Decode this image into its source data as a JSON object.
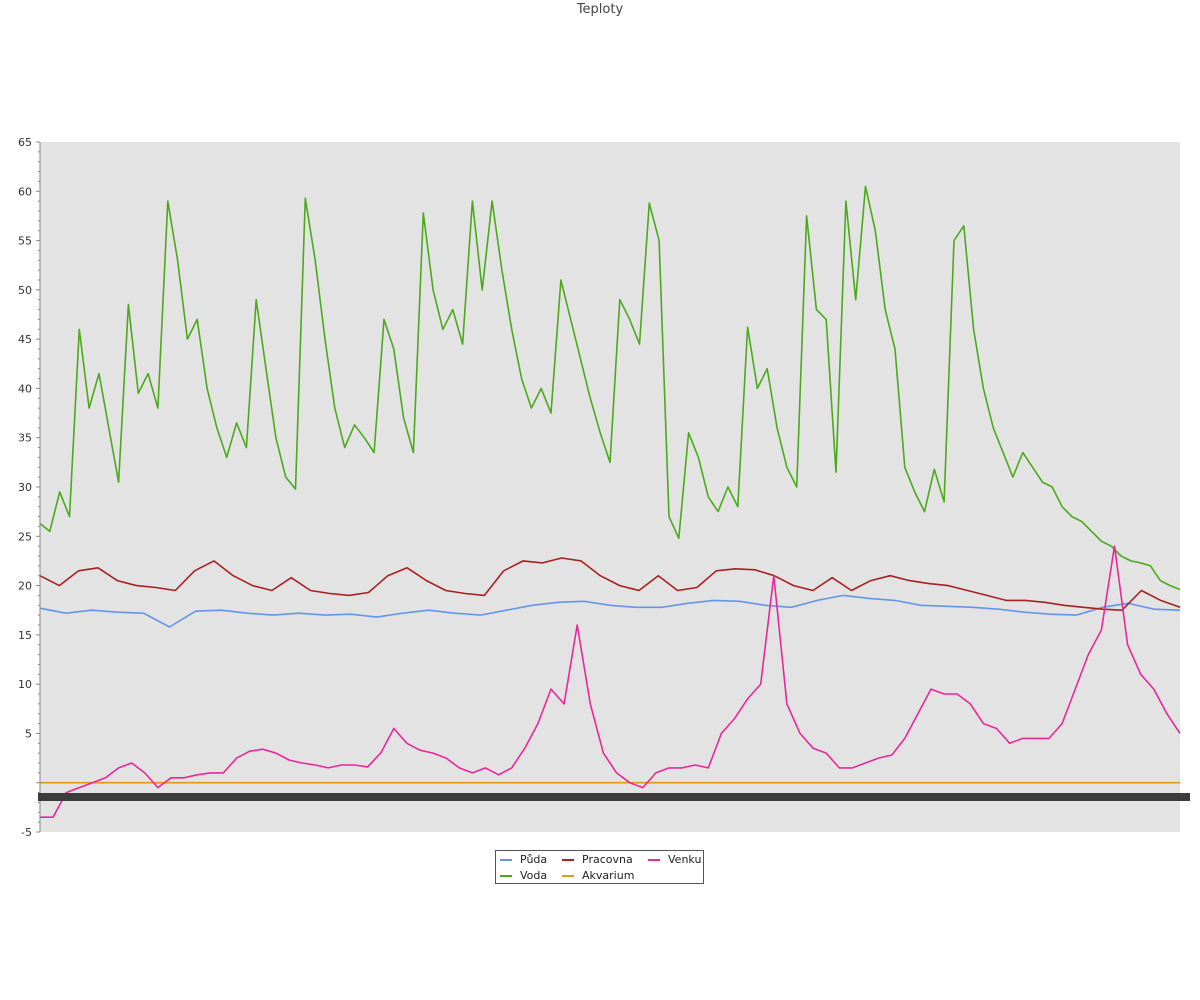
{
  "chart_data": {
    "type": "line",
    "title": "Teploty",
    "xlabel": "",
    "ylabel": "",
    "ylim": [
      -5,
      65
    ],
    "yticks": [
      65,
      60,
      55,
      50,
      45,
      40,
      35,
      30,
      25,
      20,
      15,
      10,
      5,
      -5
    ],
    "grid": false,
    "legend_position": "bottom-center",
    "plot_background": "#e3e3e3",
    "series": [
      {
        "name": "Půda",
        "color": "#6495ed",
        "values": [
          17.7,
          17.2,
          17.5,
          17.3,
          17.2,
          15.8,
          17.4,
          17.5,
          17.2,
          17.0,
          17.2,
          17.0,
          17.1,
          16.8,
          17.2,
          17.5,
          17.2,
          17.0,
          17.5,
          18.0,
          18.3,
          18.4,
          18.0,
          17.8,
          17.8,
          18.2,
          18.5,
          18.4,
          18.0,
          17.8,
          18.5,
          19.0,
          18.7,
          18.5,
          18.0,
          17.9,
          17.8,
          17.6,
          17.3,
          17.1,
          17.0,
          17.8,
          18.2,
          17.6,
          17.5
        ]
      },
      {
        "name": "Voda",
        "color": "#4aaa1a",
        "values": [
          26.3,
          25.5,
          29.5,
          27.0,
          46.0,
          38.0,
          41.5,
          36.0,
          30.5,
          48.5,
          39.5,
          41.5,
          38.0,
          59.0,
          53.0,
          45.0,
          47.0,
          40.0,
          36.0,
          33.0,
          36.5,
          34.0,
          49.0,
          42.0,
          35.0,
          31.0,
          29.8,
          59.3,
          53.0,
          45.0,
          38.0,
          34.0,
          36.3,
          35.0,
          33.5,
          47.0,
          44.0,
          37.0,
          33.5,
          57.8,
          50.0,
          46.0,
          48.0,
          44.5,
          59.0,
          50.0,
          59.0,
          52.0,
          46.0,
          41.0,
          38.0,
          40.0,
          37.5,
          51.0,
          47.0,
          43.0,
          39.0,
          35.5,
          32.5,
          49.0,
          47.0,
          44.5,
          58.8,
          55.0,
          27.0,
          24.8,
          35.5,
          33.0,
          29.0,
          27.5,
          30.0,
          28.0,
          46.2,
          40.0,
          42.0,
          36.0,
          32.0,
          30.0,
          57.5,
          48.0,
          47.0,
          31.5,
          59.0,
          49.0,
          60.5,
          56.0,
          48.0,
          44.0,
          32.0,
          29.5,
          27.5,
          31.8,
          28.5,
          55.0,
          56.5,
          46.0,
          40.0,
          36.0,
          33.5,
          31.0,
          33.5,
          32.0,
          30.5,
          30.0,
          28.0,
          27.0,
          26.5,
          25.5,
          24.5,
          24.0,
          23.0,
          22.5,
          22.3,
          22.0,
          20.5,
          20.0,
          19.6
        ]
      },
      {
        "name": "Pracovna",
        "color": "#a82020",
        "values": [
          21.0,
          20.0,
          21.5,
          21.8,
          20.5,
          20.0,
          19.8,
          19.5,
          21.5,
          22.5,
          21.0,
          20.0,
          19.5,
          20.8,
          19.5,
          19.2,
          19.0,
          19.3,
          21.0,
          21.8,
          20.5,
          19.5,
          19.2,
          19.0,
          21.5,
          22.5,
          22.3,
          22.8,
          22.5,
          21.0,
          20.0,
          19.5,
          21.0,
          19.5,
          19.8,
          21.5,
          21.7,
          21.6,
          21.0,
          20.0,
          19.5,
          20.8,
          19.5,
          20.5,
          21.0,
          20.5,
          20.2,
          20.0,
          19.5,
          19.0,
          18.5,
          18.5,
          18.3,
          18.0,
          17.8,
          17.6,
          17.5,
          19.5,
          18.5,
          17.8
        ]
      },
      {
        "name": "Akvarium",
        "color": "#e09a1a",
        "values": [
          0.0,
          0.0
        ]
      },
      {
        "name": "Venku",
        "color": "#e8289a",
        "values": [
          -3.5,
          -3.5,
          -1.0,
          -0.5,
          0.0,
          0.5,
          1.5,
          2.0,
          1.0,
          -0.5,
          0.5,
          0.5,
          0.8,
          1.0,
          1.0,
          2.5,
          3.2,
          3.4,
          3.0,
          2.3,
          2.0,
          1.8,
          1.5,
          1.8,
          1.8,
          1.6,
          3.0,
          5.5,
          4.0,
          3.3,
          3.0,
          2.5,
          1.5,
          1.0,
          1.5,
          0.8,
          1.5,
          3.5,
          6.0,
          9.5,
          8.0,
          16.0,
          8.0,
          3.0,
          1.0,
          0.0,
          -0.5,
          1.0,
          1.5,
          1.5,
          1.8,
          1.5,
          5.0,
          6.5,
          8.5,
          10.0,
          21.0,
          8.0,
          5.0,
          3.5,
          3.0,
          1.5,
          1.5,
          2.0,
          2.5,
          2.8,
          4.5,
          7.0,
          9.5,
          9.0,
          9.0,
          8.0,
          6.0,
          5.5,
          4.0,
          4.5,
          4.5,
          4.5,
          6.0,
          9.5,
          13.0,
          15.5,
          24.0,
          14.0,
          11.0,
          9.5,
          7.0,
          5.0
        ]
      }
    ]
  }
}
